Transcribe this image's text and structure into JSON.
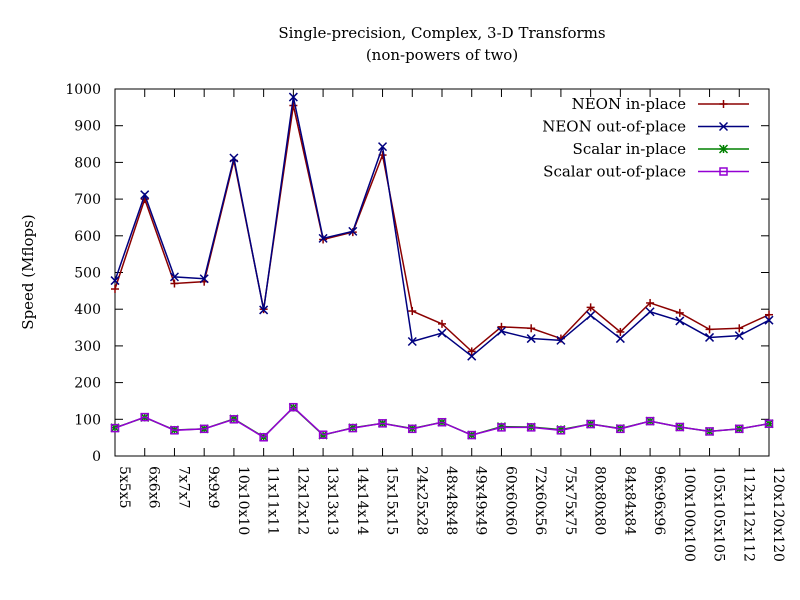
{
  "chart_data": {
    "type": "line",
    "title": "Single-precision, Complex, 3-D Transforms",
    "subtitle": "(non-powers of two)",
    "xlabel": "",
    "ylabel": "Speed (Mflops)",
    "ylim": [
      0,
      1000
    ],
    "yticks": [
      0,
      100,
      200,
      300,
      400,
      500,
      600,
      700,
      800,
      900,
      1000
    ],
    "grid": false,
    "legend_position": "top-right",
    "categories": [
      "5x5x5",
      "6x6x6",
      "7x7x7",
      "9x9x9",
      "10x10x10",
      "11x11x11",
      "12x12x12",
      "13x13x13",
      "14x14x14",
      "15x15x15",
      "24x25x28",
      "48x48x48",
      "49x49x49",
      "60x60x60",
      "72x60x56",
      "75x75x75",
      "80x80x80",
      "84x84x84",
      "96x96x96",
      "100x100x100",
      "105x105x105",
      "112x112x112",
      "120x120x120"
    ],
    "series": [
      {
        "name": "NEON in-place",
        "color": "#8b0000",
        "marker": "plus",
        "values": [
          455,
          700,
          470,
          475,
          805,
          400,
          955,
          590,
          610,
          820,
          395,
          360,
          285,
          352,
          348,
          320,
          405,
          338,
          417,
          390,
          345,
          348,
          385
        ]
      },
      {
        "name": "NEON out-of-place",
        "color": "#00007f",
        "marker": "x",
        "values": [
          478,
          712,
          488,
          483,
          812,
          398,
          978,
          593,
          612,
          843,
          312,
          335,
          272,
          340,
          320,
          315,
          383,
          320,
          393,
          368,
          323,
          328,
          370
        ]
      },
      {
        "name": "Scalar in-place",
        "color": "#008000",
        "marker": "star",
        "values": [
          77,
          105,
          71,
          74,
          101,
          52,
          132,
          57,
          77,
          89,
          75,
          92,
          57,
          80,
          79,
          72,
          87,
          75,
          95,
          79,
          67,
          74,
          88
        ]
      },
      {
        "name": "Scalar out-of-place",
        "color": "#9400d3",
        "marker": "square",
        "values": [
          76,
          106,
          70,
          74,
          100,
          51,
          133,
          58,
          76,
          89,
          74,
          92,
          57,
          78,
          78,
          70,
          87,
          74,
          95,
          79,
          67,
          74,
          88
        ]
      }
    ]
  }
}
